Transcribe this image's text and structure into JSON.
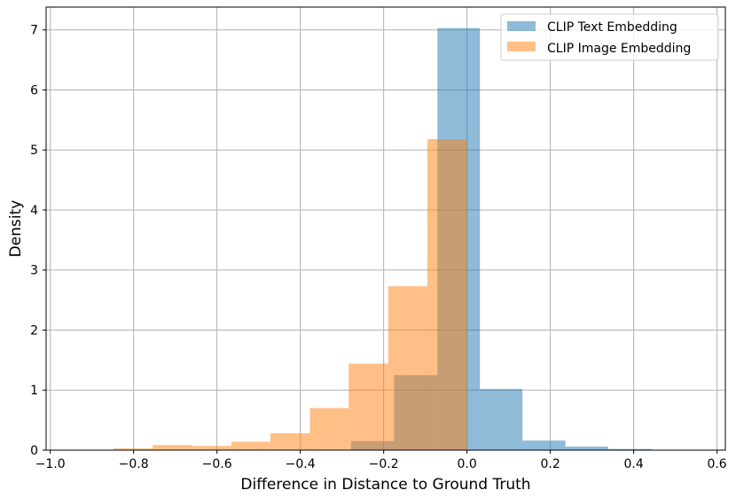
{
  "chart_data": {
    "type": "bar",
    "subtype": "histogram-overlay",
    "xlabel": "Difference in Distance to Ground Truth",
    "ylabel": "Density",
    "xlim": [
      -1.01,
      0.62
    ],
    "ylim": [
      0,
      7.38
    ],
    "xticks": [
      -1.0,
      -0.8,
      -0.6,
      -0.4,
      -0.2,
      0.0,
      0.2,
      0.4,
      0.6
    ],
    "xtick_labels": [
      "−1.0",
      "−0.8",
      "−0.6",
      "−0.4",
      "−0.2",
      "0.0",
      "0.2",
      "0.4",
      "0.6"
    ],
    "yticks": [
      0,
      1,
      2,
      3,
      4,
      5,
      6,
      7
    ],
    "ytick_labels": [
      "0",
      "1",
      "2",
      "3",
      "4",
      "5",
      "6",
      "7"
    ],
    "grid": true,
    "legend_position": "top-right",
    "series": [
      {
        "name": "CLIP Text Embedding",
        "color": "#1f77b4",
        "alpha": 0.5,
        "bin_edges": [
          -0.278,
          -0.175,
          -0.071,
          0.031,
          0.133,
          0.236,
          0.339,
          0.443
        ],
        "values": [
          0.15,
          1.25,
          7.03,
          1.02,
          0.16,
          0.06,
          0.02
        ]
      },
      {
        "name": "CLIP Image Embedding",
        "color": "#ff7f0e",
        "alpha": 0.5,
        "bin_edges": [
          -0.848,
          -0.754,
          -0.66,
          -0.565,
          -0.472,
          -0.377,
          -0.284,
          -0.189,
          -0.095,
          0.0
        ],
        "values": [
          0.03,
          0.085,
          0.07,
          0.14,
          0.28,
          0.7,
          1.44,
          2.73,
          5.18
        ]
      }
    ]
  }
}
